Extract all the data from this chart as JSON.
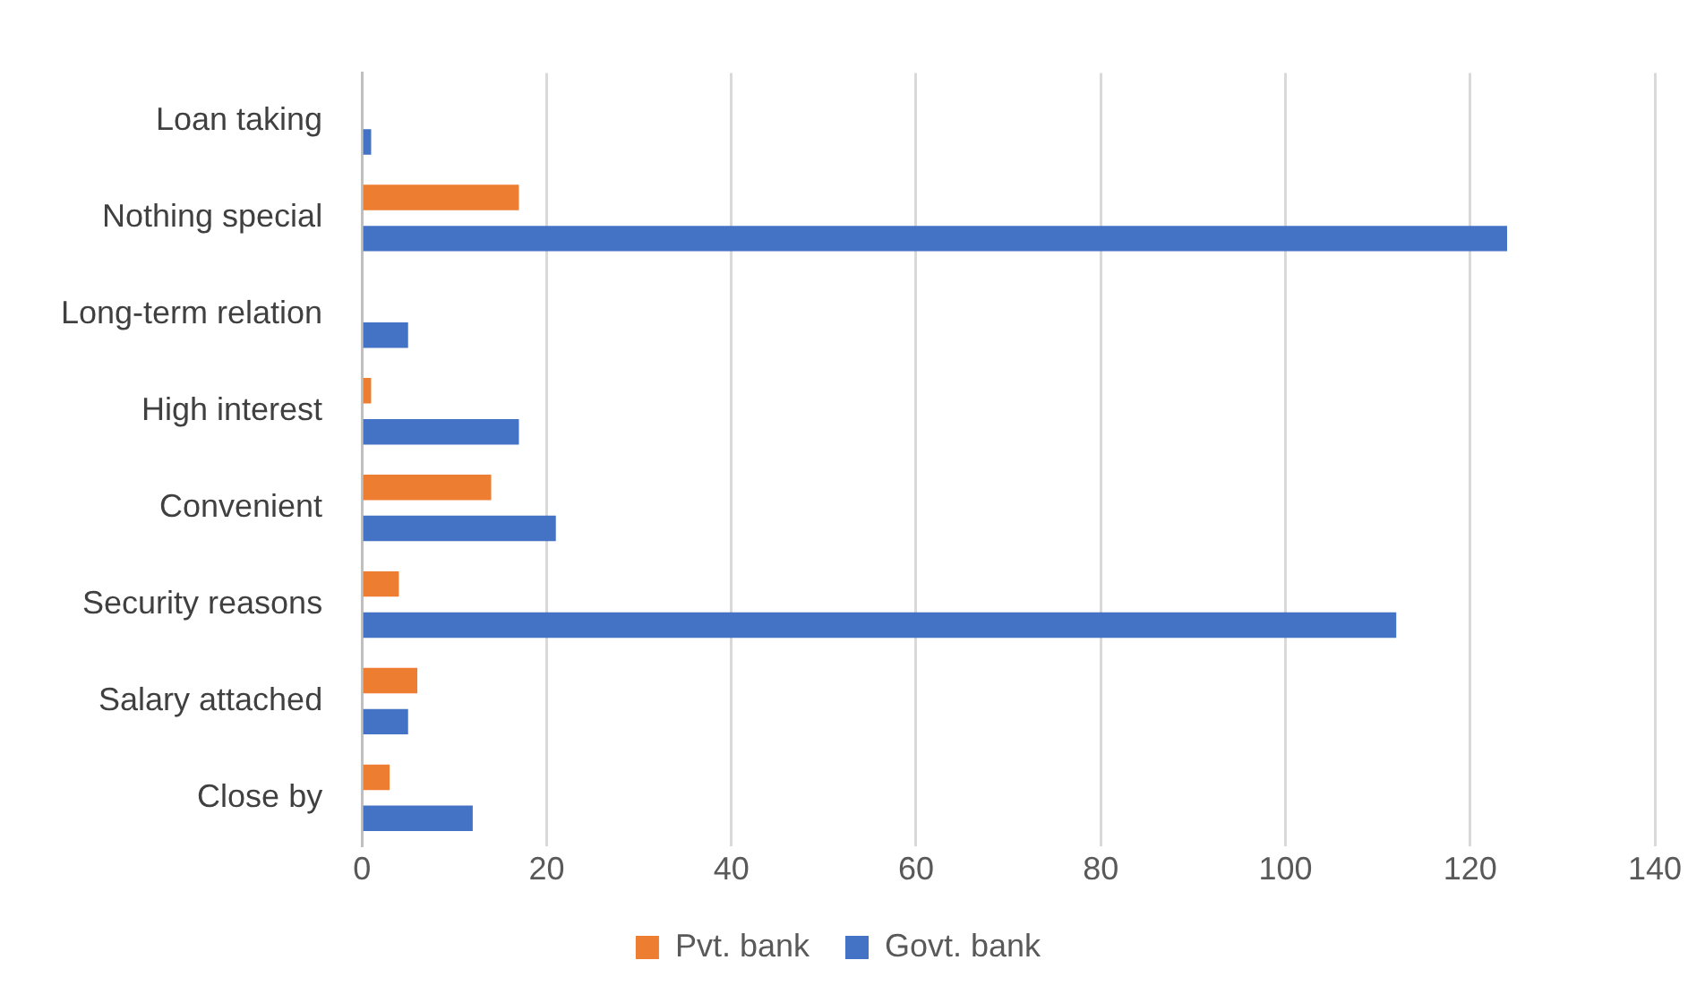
{
  "chart_data": {
    "type": "bar",
    "orientation": "horizontal",
    "categories": [
      "Loan taking",
      "Nothing special",
      "Long-term relation",
      "High interest",
      "Convenient",
      "Security reasons",
      "Salary attached",
      "Close by"
    ],
    "series": [
      {
        "name": "Pvt. bank",
        "color": "#ed7d31",
        "values": [
          0,
          17,
          0,
          1,
          14,
          4,
          6,
          3
        ]
      },
      {
        "name": "Govt. bank",
        "color": "#4472c4",
        "values": [
          1,
          124,
          5,
          17,
          21,
          112,
          5,
          12
        ]
      }
    ],
    "xlim": [
      0,
      140
    ],
    "xticks": [
      0,
      20,
      40,
      60,
      80,
      100,
      120,
      140
    ],
    "grid": "x",
    "legend": "bottom"
  }
}
